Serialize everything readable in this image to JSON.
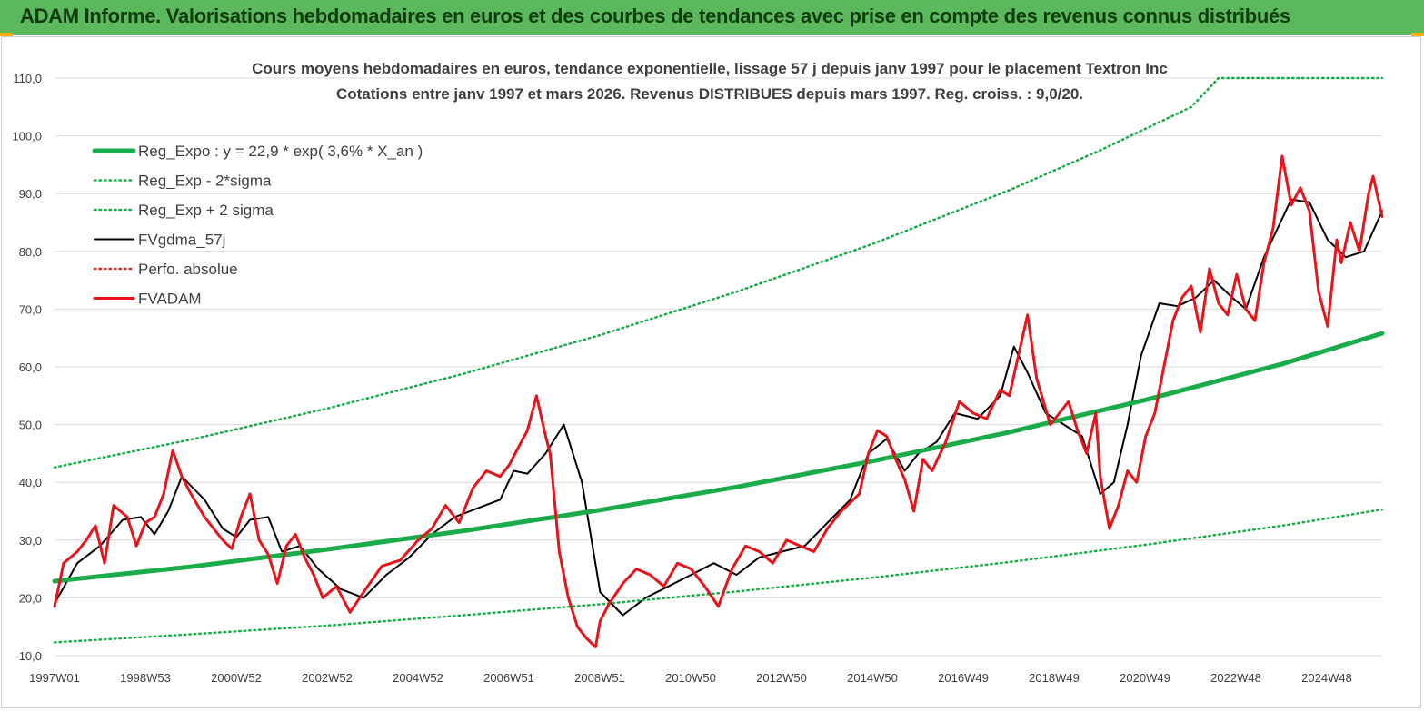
{
  "banner": {
    "title": "ADAM Informe. Valorisations hebdomadaires en euros et des courbes de tendances avec prise en compte des revenus connus distribués"
  },
  "colors": {
    "banner": "#5cb85c",
    "reg": "#1aac4a",
    "black": "#000000",
    "red": "#e8141b",
    "perfo": "#d0302a"
  },
  "chart_data": {
    "type": "line",
    "title": "Cours moyens hebdomadaires en euros, tendance exponentielle, lissage 57 j depuis janv 1997 pour le placement Textron Inc",
    "subtitle": "Cotations entre janv 1997 et mars 2026. Revenus DISTRIBUES depuis mars 1997. Reg. croiss. : 9,0/20.",
    "xlabel": "",
    "ylabel": "",
    "x_range": [
      1997.0,
      2026.2
    ],
    "ylim": [
      10,
      110
    ],
    "y_ticks": [
      "10,0",
      "20,0",
      "30,0",
      "40,0",
      "50,0",
      "60,0",
      "70,0",
      "80,0",
      "90,0",
      "100,0",
      "110,0"
    ],
    "x_ticks": [
      "1997W01",
      "1998W53",
      "2000W52",
      "2002W52",
      "2004W52",
      "2006W51",
      "2008W51",
      "2010W50",
      "2012W50",
      "2014W50",
      "2016W49",
      "2018W49",
      "2020W49",
      "2022W48",
      "2024W48"
    ],
    "grid": "horizontal",
    "legend_position": "top-left",
    "legend": [
      "Reg_Expo : y = 22,9 * exp( 3,6% *  X_an )",
      "Reg_Exp - 2*sigma",
      "Reg_Exp + 2 sigma",
      "FVgdma_57j",
      "Perfo. absolue",
      "FVADAM"
    ],
    "series": [
      {
        "name": "Reg_Expo : y = 22,9 * exp( 3,6% *  X_an )",
        "style": "solid-thick",
        "color": "#1aac4a",
        "x": [
          1997.0,
          2000.0,
          2003.0,
          2006.0,
          2009.0,
          2012.0,
          2015.0,
          2018.0,
          2021.0,
          2024.0,
          2026.2
        ],
        "y": [
          22.9,
          25.4,
          28.4,
          31.6,
          35.2,
          39.2,
          43.7,
          48.7,
          54.3,
          60.5,
          65.8
        ]
      },
      {
        "name": "Reg_Exp - 2*sigma",
        "style": "dotted",
        "color": "#1aac4a",
        "x": [
          1997.0,
          2000.0,
          2003.0,
          2006.0,
          2009.0,
          2012.0,
          2015.0,
          2018.0,
          2021.0,
          2024.0,
          2026.2
        ],
        "y": [
          12.3,
          13.7,
          15.2,
          17.0,
          18.9,
          21.1,
          23.5,
          26.2,
          29.2,
          32.5,
          35.3
        ]
      },
      {
        "name": "Reg_Exp + 2 sigma",
        "style": "dotted",
        "color": "#1aac4a",
        "x": [
          1997.0,
          2000.0,
          2003.0,
          2006.0,
          2009.0,
          2012.0,
          2015.0,
          2018.0,
          2020.0,
          2022.0,
          2022.6,
          2024.0,
          2026.2
        ],
        "y": [
          42.6,
          47.4,
          52.8,
          58.8,
          65.5,
          73.0,
          81.3,
          90.6,
          97.5,
          105.0,
          110.0,
          110.0,
          110.0
        ]
      },
      {
        "name": "FVgdma_57j",
        "style": "solid",
        "color": "#000000",
        "x": [
          1997.0,
          1997.5,
          1998.0,
          1998.5,
          1998.9,
          1999.2,
          1999.5,
          1999.8,
          2000.3,
          2000.7,
          2001.0,
          2001.3,
          2001.7,
          2002.0,
          2002.4,
          2002.8,
          2003.3,
          2003.8,
          2004.3,
          2004.8,
          2005.3,
          2005.8,
          2006.3,
          2006.8,
          2007.1,
          2007.4,
          2007.8,
          2008.2,
          2008.6,
          2009.0,
          2009.5,
          2010.0,
          2010.5,
          2011.0,
          2011.5,
          2012.0,
          2012.5,
          2013.0,
          2013.5,
          2014.0,
          2014.5,
          2014.9,
          2015.3,
          2015.7,
          2016.0,
          2016.4,
          2016.8,
          2017.3,
          2017.8,
          2018.1,
          2018.4,
          2018.8,
          2019.2,
          2019.6,
          2020.0,
          2020.3,
          2020.6,
          2020.9,
          2021.3,
          2021.7,
          2022.1,
          2022.5,
          2022.9,
          2023.2,
          2023.6,
          2023.9,
          2024.2,
          2024.6,
          2025.0,
          2025.4,
          2025.8,
          2026.2
        ],
        "y": [
          19.0,
          26.0,
          29.0,
          33.5,
          34.0,
          31.0,
          35.0,
          41.0,
          37.0,
          32.0,
          30.5,
          33.5,
          34.0,
          28.0,
          29.0,
          25.0,
          21.5,
          20.0,
          24.0,
          27.0,
          31.0,
          34.0,
          35.5,
          37.0,
          42.0,
          41.5,
          45.0,
          50.0,
          40.0,
          21.0,
          17.0,
          20.0,
          22.0,
          24.0,
          26.0,
          24.0,
          27.0,
          28.0,
          29.0,
          33.0,
          37.0,
          45.0,
          47.5,
          42.0,
          45.0,
          47.0,
          52.0,
          51.0,
          55.0,
          63.5,
          59.0,
          52.0,
          50.0,
          48.0,
          38.0,
          40.0,
          50.0,
          62.0,
          71.0,
          70.5,
          72.0,
          75.0,
          72.0,
          70.0,
          79.0,
          84.0,
          89.0,
          88.5,
          82.0,
          79.0,
          80.0,
          87.0
        ]
      },
      {
        "name": "Perfo. absolue",
        "style": "dotted",
        "color": "#d0302a",
        "x": [],
        "y": []
      },
      {
        "name": "FVADAM",
        "style": "solid-thick",
        "color": "#e8141b",
        "x": [
          1997.0,
          1997.2,
          1997.5,
          1997.7,
          1997.9,
          1998.1,
          1998.3,
          1998.6,
          1998.8,
          1999.0,
          1999.2,
          1999.4,
          1999.6,
          1999.8,
          2000.0,
          2000.3,
          2000.5,
          2000.7,
          2000.9,
          2001.1,
          2001.3,
          2001.5,
          2001.7,
          2001.9,
          2002.1,
          2002.3,
          2002.5,
          2002.7,
          2002.9,
          2003.2,
          2003.5,
          2003.8,
          2004.2,
          2004.6,
          2005.0,
          2005.3,
          2005.6,
          2005.9,
          2006.2,
          2006.5,
          2006.8,
          2007.0,
          2007.2,
          2007.4,
          2007.6,
          2007.8,
          2007.9,
          2008.1,
          2008.3,
          2008.5,
          2008.7,
          2008.9,
          2009.0,
          2009.2,
          2009.5,
          2009.8,
          2010.1,
          2010.4,
          2010.7,
          2011.0,
          2011.3,
          2011.6,
          2011.9,
          2012.2,
          2012.5,
          2012.8,
          2013.1,
          2013.4,
          2013.7,
          2014.0,
          2014.3,
          2014.5,
          2014.7,
          2014.9,
          2015.1,
          2015.3,
          2015.5,
          2015.7,
          2015.9,
          2016.1,
          2016.3,
          2016.6,
          2016.9,
          2017.2,
          2017.5,
          2017.8,
          2018.0,
          2018.2,
          2018.4,
          2018.6,
          2018.9,
          2019.1,
          2019.3,
          2019.5,
          2019.7,
          2019.9,
          2020.0,
          2020.2,
          2020.4,
          2020.6,
          2020.8,
          2021.0,
          2021.2,
          2021.4,
          2021.6,
          2021.8,
          2022.0,
          2022.2,
          2022.4,
          2022.6,
          2022.8,
          2023.0,
          2023.2,
          2023.4,
          2023.6,
          2023.8,
          2024.0,
          2024.2,
          2024.4,
          2024.6,
          2024.8,
          2025.0,
          2025.2,
          2025.3,
          2025.5,
          2025.7,
          2025.9,
          2026.0,
          2026.2
        ],
        "y": [
          18.5,
          26.0,
          28.0,
          30.0,
          32.5,
          26.0,
          36.0,
          34.0,
          29.0,
          33.0,
          34.0,
          38.0,
          45.5,
          41.0,
          38.0,
          34.0,
          32.0,
          30.0,
          28.5,
          34.0,
          38.0,
          30.0,
          27.5,
          22.5,
          29.0,
          31.0,
          27.0,
          24.0,
          20.0,
          22.0,
          17.5,
          21.0,
          25.5,
          26.5,
          30.0,
          32.0,
          36.0,
          33.0,
          39.0,
          42.0,
          41.0,
          43.0,
          46.0,
          49.0,
          55.0,
          48.0,
          45.0,
          28.0,
          20.0,
          15.0,
          13.0,
          11.5,
          16.0,
          19.0,
          22.5,
          25.0,
          24.0,
          22.0,
          26.0,
          25.0,
          22.0,
          18.5,
          25.0,
          29.0,
          28.0,
          26.0,
          30.0,
          29.0,
          28.0,
          32.0,
          35.0,
          36.5,
          38.0,
          45.0,
          49.0,
          48.0,
          44.0,
          40.5,
          35.0,
          44.0,
          42.0,
          47.0,
          54.0,
          52.0,
          51.0,
          56.0,
          55.0,
          62.0,
          69.0,
          58.0,
          50.0,
          52.0,
          54.0,
          49.0,
          45.0,
          52.0,
          41.0,
          32.0,
          36.0,
          42.0,
          40.0,
          48.0,
          52.0,
          60.0,
          68.0,
          72.0,
          74.0,
          66.0,
          77.0,
          71.0,
          69.0,
          76.0,
          70.0,
          68.0,
          78.0,
          84.0,
          96.5,
          88.0,
          91.0,
          87.0,
          73.0,
          67.0,
          82.0,
          78.0,
          85.0,
          80.0,
          90.0,
          93.0,
          86.0
        ]
      }
    ]
  }
}
